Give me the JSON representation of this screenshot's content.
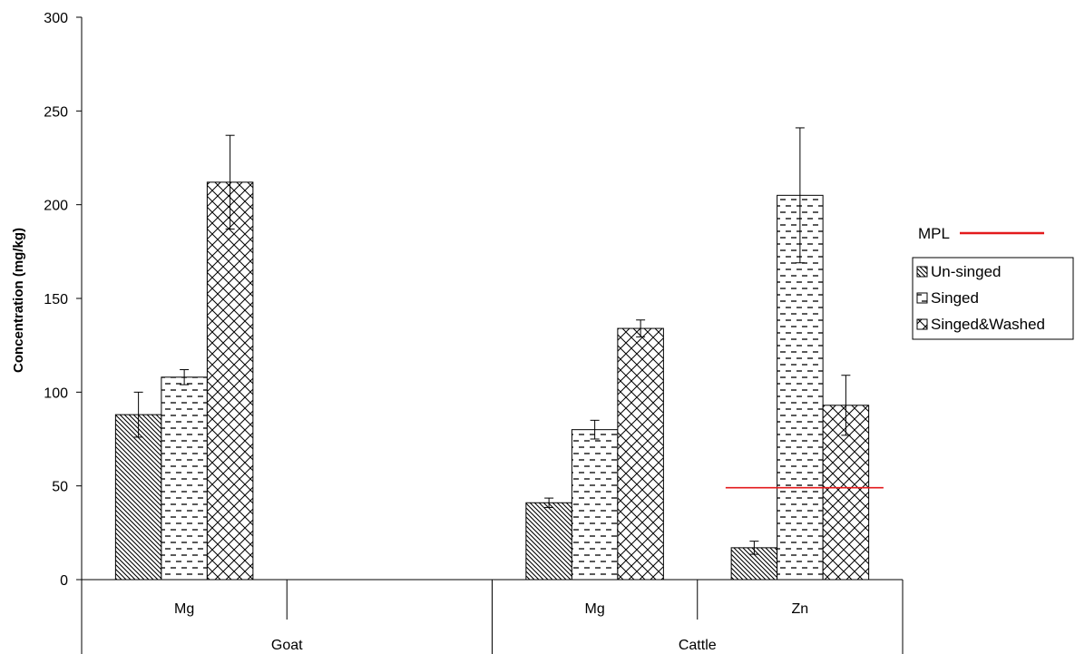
{
  "chart_data": {
    "type": "bar",
    "ylabel": "Concentration (mg/kg)",
    "ylim": [
      0,
      300
    ],
    "yticks": [
      0,
      50,
      100,
      150,
      200,
      250,
      300
    ],
    "grid": false,
    "legend_position": "right",
    "groups": [
      {
        "name": "Goat",
        "categories": [
          "Mg",
          ""
        ]
      },
      {
        "name": "Cattle",
        "categories": [
          "Mg",
          "Zn"
        ]
      }
    ],
    "categories": [
      "Goat Mg",
      "Goat (blank)",
      "Cattle Mg",
      "Cattle Zn"
    ],
    "category_labels": [
      "Mg",
      "",
      "Mg",
      "Zn"
    ],
    "series": [
      {
        "name": "Un-singed",
        "pattern": "diagonal",
        "values": [
          88,
          null,
          41,
          17
        ],
        "errors": [
          12,
          null,
          2.5,
          3.5
        ]
      },
      {
        "name": "Singed",
        "pattern": "dashes",
        "values": [
          108,
          null,
          80,
          205
        ],
        "errors": [
          4,
          null,
          5,
          36
        ]
      },
      {
        "name": "Singed&Washed",
        "pattern": "crosshatch",
        "values": [
          212,
          null,
          134,
          93
        ],
        "errors": [
          25,
          null,
          4.5,
          16
        ]
      }
    ],
    "reference_line": {
      "name": "MPL",
      "value": 49,
      "category": "Cattle Zn",
      "color": "#e31a1c"
    }
  },
  "legend": {
    "mpl_label": "MPL",
    "items": [
      "Un-singed",
      "Singed",
      "Singed&Washed"
    ]
  }
}
